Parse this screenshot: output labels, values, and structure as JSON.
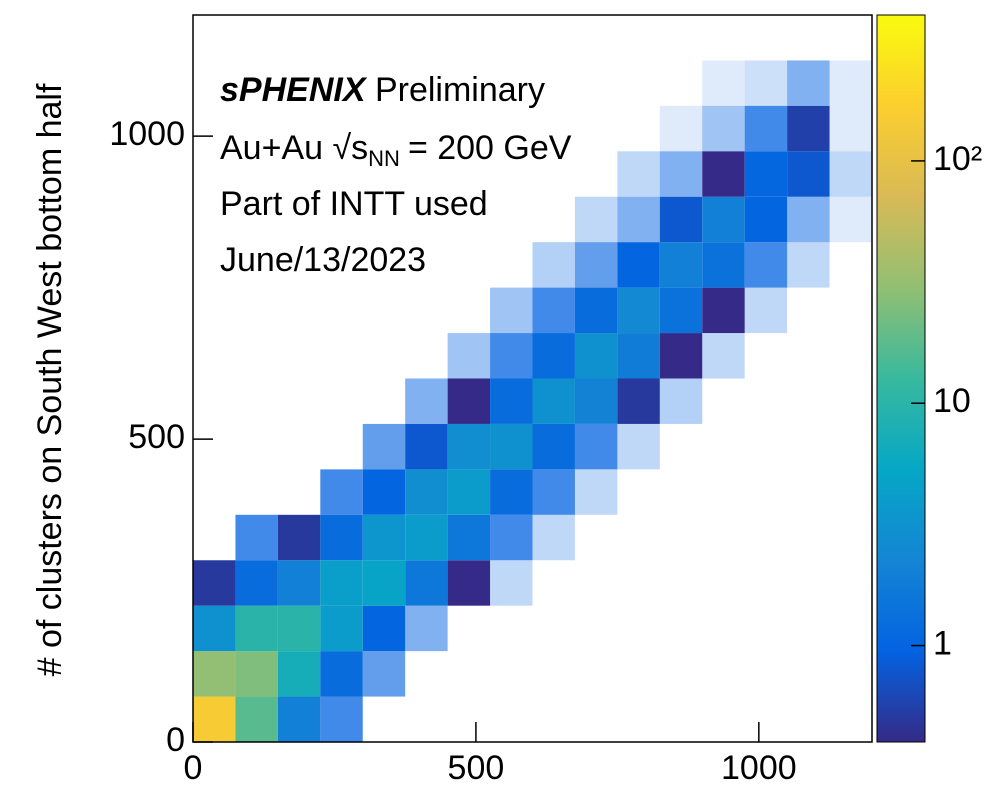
{
  "chart_data": {
    "type": "hist2d",
    "y_label": "# of clusters on South West bottom half",
    "annotations": [
      "sPHENIX",
      "Preliminary",
      "Au+Au",
      "√s",
      "NN",
      "= 200 GeV",
      "Part of INTT used",
      "June/13/2023"
    ],
    "xlim": [
      0,
      1200
    ],
    "ylim": [
      0,
      1200
    ],
    "xticks": [
      0,
      500,
      1000
    ],
    "yticks": [
      0,
      500,
      1000
    ],
    "xbins": [
      0,
      75,
      150,
      225,
      300,
      375,
      450,
      525,
      600,
      675,
      750,
      825,
      900,
      975,
      1050,
      1125,
      1200
    ],
    "ybins": [
      0,
      75,
      150,
      225,
      300,
      375,
      450,
      525,
      600,
      675,
      750,
      825,
      900,
      975,
      1050,
      1125,
      1200
    ],
    "z": [
      [
        150,
        17,
        2,
        0.3,
        0,
        0,
        0,
        0,
        0,
        0,
        0,
        0,
        0,
        0,
        0,
        0
      ],
      [
        30,
        25,
        7,
        1.2,
        0.25,
        0,
        0,
        0,
        0,
        0,
        0,
        0,
        0,
        0,
        0,
        0
      ],
      [
        3,
        10,
        10,
        4,
        1,
        0.2,
        0,
        0,
        0,
        0,
        0,
        0,
        0,
        0,
        0,
        0
      ],
      [
        0.5,
        1.2,
        2,
        4.2,
        5,
        1.6,
        0.4,
        0.1,
        0,
        0,
        0,
        0,
        0,
        0,
        0,
        0
      ],
      [
        0,
        0.3,
        0.5,
        1.2,
        3.5,
        4,
        1.6,
        0.3,
        0.1,
        0,
        0,
        0,
        0,
        0,
        0,
        0
      ],
      [
        0,
        0,
        0,
        0.3,
        1,
        2.8,
        4,
        1.2,
        0.3,
        0.1,
        0,
        0,
        0,
        0,
        0,
        0
      ],
      [
        0,
        0,
        0,
        0,
        0.25,
        0.8,
        2.8,
        3,
        1.2,
        0.3,
        0.1,
        0,
        0,
        0,
        0,
        0
      ],
      [
        0,
        0,
        0,
        0,
        0,
        0.2,
        0.4,
        1.2,
        3,
        2.1,
        0.5,
        0.12,
        0,
        0,
        0,
        0
      ],
      [
        0,
        0,
        0,
        0,
        0,
        0,
        0.15,
        0.3,
        1.2,
        3,
        1.8,
        0.4,
        0.1,
        0,
        0,
        0
      ],
      [
        0,
        0,
        0,
        0,
        0,
        0,
        0,
        0.15,
        0.3,
        1.2,
        2.5,
        1.4,
        0.4,
        0.1,
        0,
        0
      ],
      [
        0,
        0,
        0,
        0,
        0,
        0,
        0,
        0,
        0.12,
        0.25,
        1,
        2,
        1.4,
        0.3,
        0.1,
        0
      ],
      [
        0,
        0,
        0,
        0,
        0,
        0,
        0,
        0,
        0,
        0.1,
        0.2,
        0.8,
        2,
        1,
        0.2,
        0.05
      ],
      [
        0,
        0,
        0,
        0,
        0,
        0,
        0,
        0,
        0,
        0,
        0.1,
        0.2,
        0.4,
        1.05,
        0.8,
        0.1
      ],
      [
        0,
        0,
        0,
        0,
        0,
        0,
        0,
        0,
        0,
        0,
        0,
        0.05,
        0.15,
        0.3,
        0.56,
        0.05
      ],
      [
        0,
        0,
        0,
        0,
        0,
        0,
        0,
        0,
        0,
        0,
        0,
        0,
        0.05,
        0.08,
        0.2,
        0.05
      ],
      [
        0,
        0,
        0,
        0,
        0,
        0,
        0,
        0,
        0,
        0,
        0,
        0,
        0,
        0,
        0,
        0
      ]
    ],
    "zscale": "log",
    "zlim": [
      0.4,
      400
    ],
    "zticks": [
      1,
      10,
      {
        "value": 100,
        "label": "10²"
      }
    ],
    "colormap": [
      "#352a87",
      "#0363e1",
      "#1485d4",
      "#06a7c6",
      "#38b99e",
      "#92bf73",
      "#d9ba56",
      "#fcce2e",
      "#f9fb0e"
    ]
  }
}
